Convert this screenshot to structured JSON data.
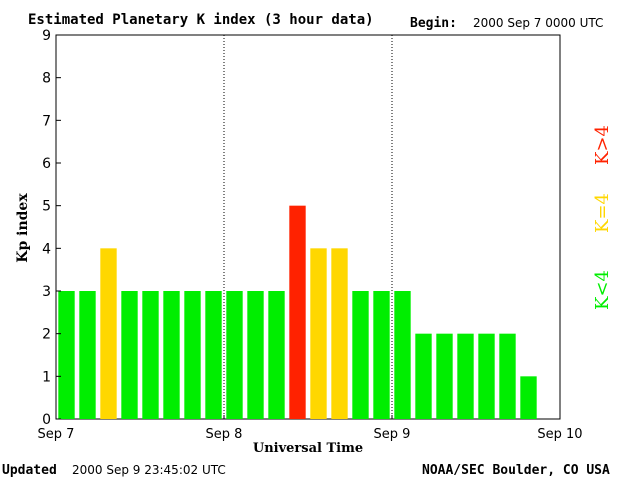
{
  "header": {
    "title": "Estimated Planetary K index (3 hour data)",
    "begin_label": "Begin:",
    "begin_value": "2000 Sep 7 0000 UTC"
  },
  "footer": {
    "updated_label": "Updated",
    "updated_value": "2000 Sep  9 23:45:02 UTC",
    "source": "NOAA/SEC Boulder, CO USA"
  },
  "chart_data": {
    "type": "bar",
    "title": "Estimated Planetary K index (3 hour data)",
    "xlabel": "Universal Time",
    "ylabel": "Kp index",
    "ylim": [
      0,
      9
    ],
    "yticks": [
      "0",
      "1",
      "2",
      "3",
      "4",
      "5",
      "6",
      "7",
      "8",
      "9"
    ],
    "xticks": [
      "Sep 7",
      "Sep 8",
      "Sep 9",
      "Sep 10"
    ],
    "day_dividers": [
      "Sep 8",
      "Sep 9"
    ],
    "grid": false,
    "values": [
      3,
      3,
      4,
      3,
      3,
      3,
      3,
      3,
      3,
      3,
      3,
      5,
      4,
      4,
      3,
      3,
      3,
      2,
      2,
      2,
      2,
      2,
      1
    ],
    "colors": {
      "below_4": "#00ee00",
      "equal_4": "#ffd700",
      "above_4": "#ff2200"
    },
    "legend": [
      {
        "label": "K<4",
        "color": "#00ee00"
      },
      {
        "label": "K=4",
        "color": "#ffd700"
      },
      {
        "label": "K>4",
        "color": "#ff2200"
      }
    ],
    "legend_position": "right"
  }
}
